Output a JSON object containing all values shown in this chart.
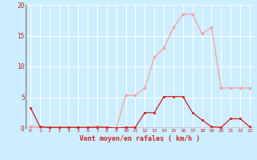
{
  "x": [
    0,
    1,
    2,
    3,
    4,
    5,
    6,
    7,
    8,
    9,
    10,
    11,
    12,
    13,
    14,
    15,
    16,
    17,
    18,
    19,
    20,
    21,
    22,
    23
  ],
  "y_rafales": [
    0.3,
    0.1,
    0.1,
    0.1,
    0.1,
    0.1,
    0.1,
    0.3,
    0.1,
    0.0,
    5.3,
    5.3,
    6.5,
    11.5,
    13.0,
    16.3,
    18.5,
    18.5,
    15.3,
    16.3,
    6.5,
    6.5,
    6.5,
    6.5
  ],
  "y_moyen": [
    3.3,
    0.2,
    0.1,
    0.1,
    0.1,
    0.1,
    0.1,
    0.1,
    0.1,
    0.0,
    0.1,
    0.1,
    2.5,
    2.5,
    5.1,
    5.1,
    5.1,
    2.5,
    1.3,
    0.2,
    0.1,
    1.5,
    1.5,
    0.2
  ],
  "color_rafales": "#f4a0a0",
  "color_moyen": "#cc2222",
  "bg_color": "#cceeff",
  "grid_color": "#ffffff",
  "spine_color": "#888888",
  "xlabel": "Vent moyen/en rafales ( km/h )",
  "ylabel_ticks": [
    0,
    5,
    10,
    15,
    20
  ],
  "ylim": [
    0,
    20
  ],
  "xlim_min": -0.5,
  "xlim_max": 23.5
}
